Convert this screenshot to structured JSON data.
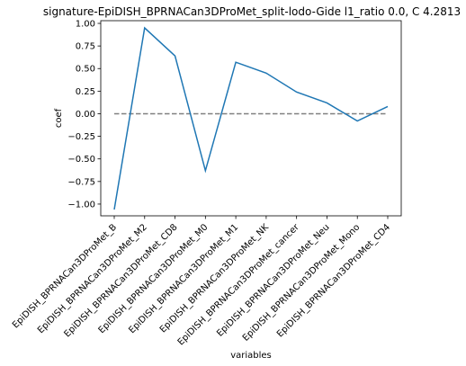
{
  "chart_data": {
    "type": "line",
    "title": "signature-EpiDISH_BPRNACan3DProMet_split-lodo-Gide l1_ratio 0.0, C 4.2813",
    "xlabel": "variables",
    "ylabel": "coef",
    "categories": [
      "EpiDISH_BPRNACan3DProMet_B",
      "EpiDISH_BPRNACan3DProMet_M2",
      "EpiDISH_BPRNACan3DProMet_CD8",
      "EpiDISH_BPRNACan3DProMet_M0",
      "EpiDISH_BPRNACan3DProMet_M1",
      "EpiDISH_BPRNACan3DProMet_NK",
      "EpiDISH_BPRNACan3DProMet_cancer",
      "EpiDISH_BPRNACan3DProMet_Neu",
      "EpiDISH_BPRNACan3DProMet_Mono",
      "EpiDISH_BPRNACan3DProMet_CD4"
    ],
    "series": [
      {
        "values": [
          -1.06,
          0.95,
          0.64,
          -0.63,
          0.57,
          0.45,
          0.24,
          0.12,
          -0.08,
          0.08
        ]
      }
    ],
    "reference_line": {
      "y": 0.0,
      "style": "dashed",
      "color": "#808080"
    },
    "ylim": [
      -1.13,
      1.03
    ],
    "yticks": [
      1.0,
      0.75,
      0.5,
      0.25,
      0.0,
      -0.25,
      -0.5,
      -0.75,
      -1.0
    ],
    "ytick_labels": [
      "1.00",
      "0.75",
      "0.50",
      "0.25",
      "0.00",
      "−0.25",
      "−0.50",
      "−0.75",
      "−1.00"
    ],
    "line_color": "#1f77b4",
    "grid": false
  }
}
